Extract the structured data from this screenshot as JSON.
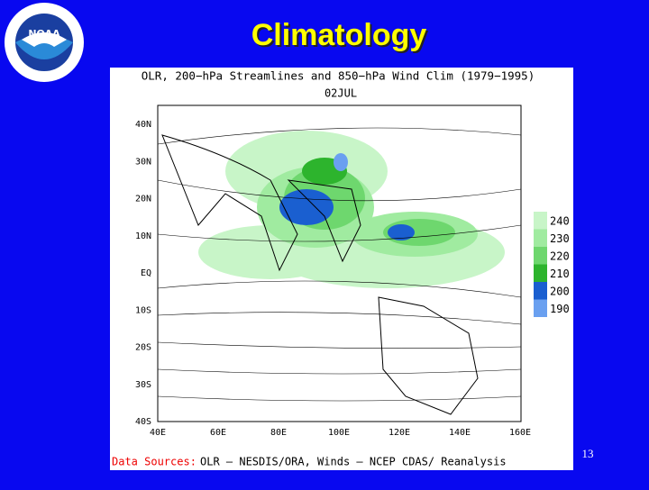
{
  "slide": {
    "title": "Climatology",
    "page_number": "13"
  },
  "figure": {
    "title": "OLR, 200−hPa Streamlines and 850−hPa Wind Clim (1979−1995)",
    "subtitle": "02JUL",
    "lat_labels": [
      "40N",
      "30N",
      "20N",
      "10N",
      "EQ",
      "10S",
      "20S",
      "30S",
      "40S"
    ],
    "lon_labels": [
      "40E",
      "60E",
      "80E",
      "100E",
      "120E",
      "140E",
      "160E"
    ],
    "legend": [
      {
        "label": "240",
        "color": "#c8f5c8"
      },
      {
        "label": "230",
        "color": "#a0eba0"
      },
      {
        "label": "220",
        "color": "#6ed76e"
      },
      {
        "label": "210",
        "color": "#2db42d"
      },
      {
        "label": "200",
        "color": "#1a5fd0"
      },
      {
        "label": "190",
        "color": "#6aa0f0"
      }
    ],
    "source_prefix": "Data Sources:",
    "source_text": "OLR — NESDIS/ORA, Winds — NCEP CDAS/ Reanalysis"
  }
}
